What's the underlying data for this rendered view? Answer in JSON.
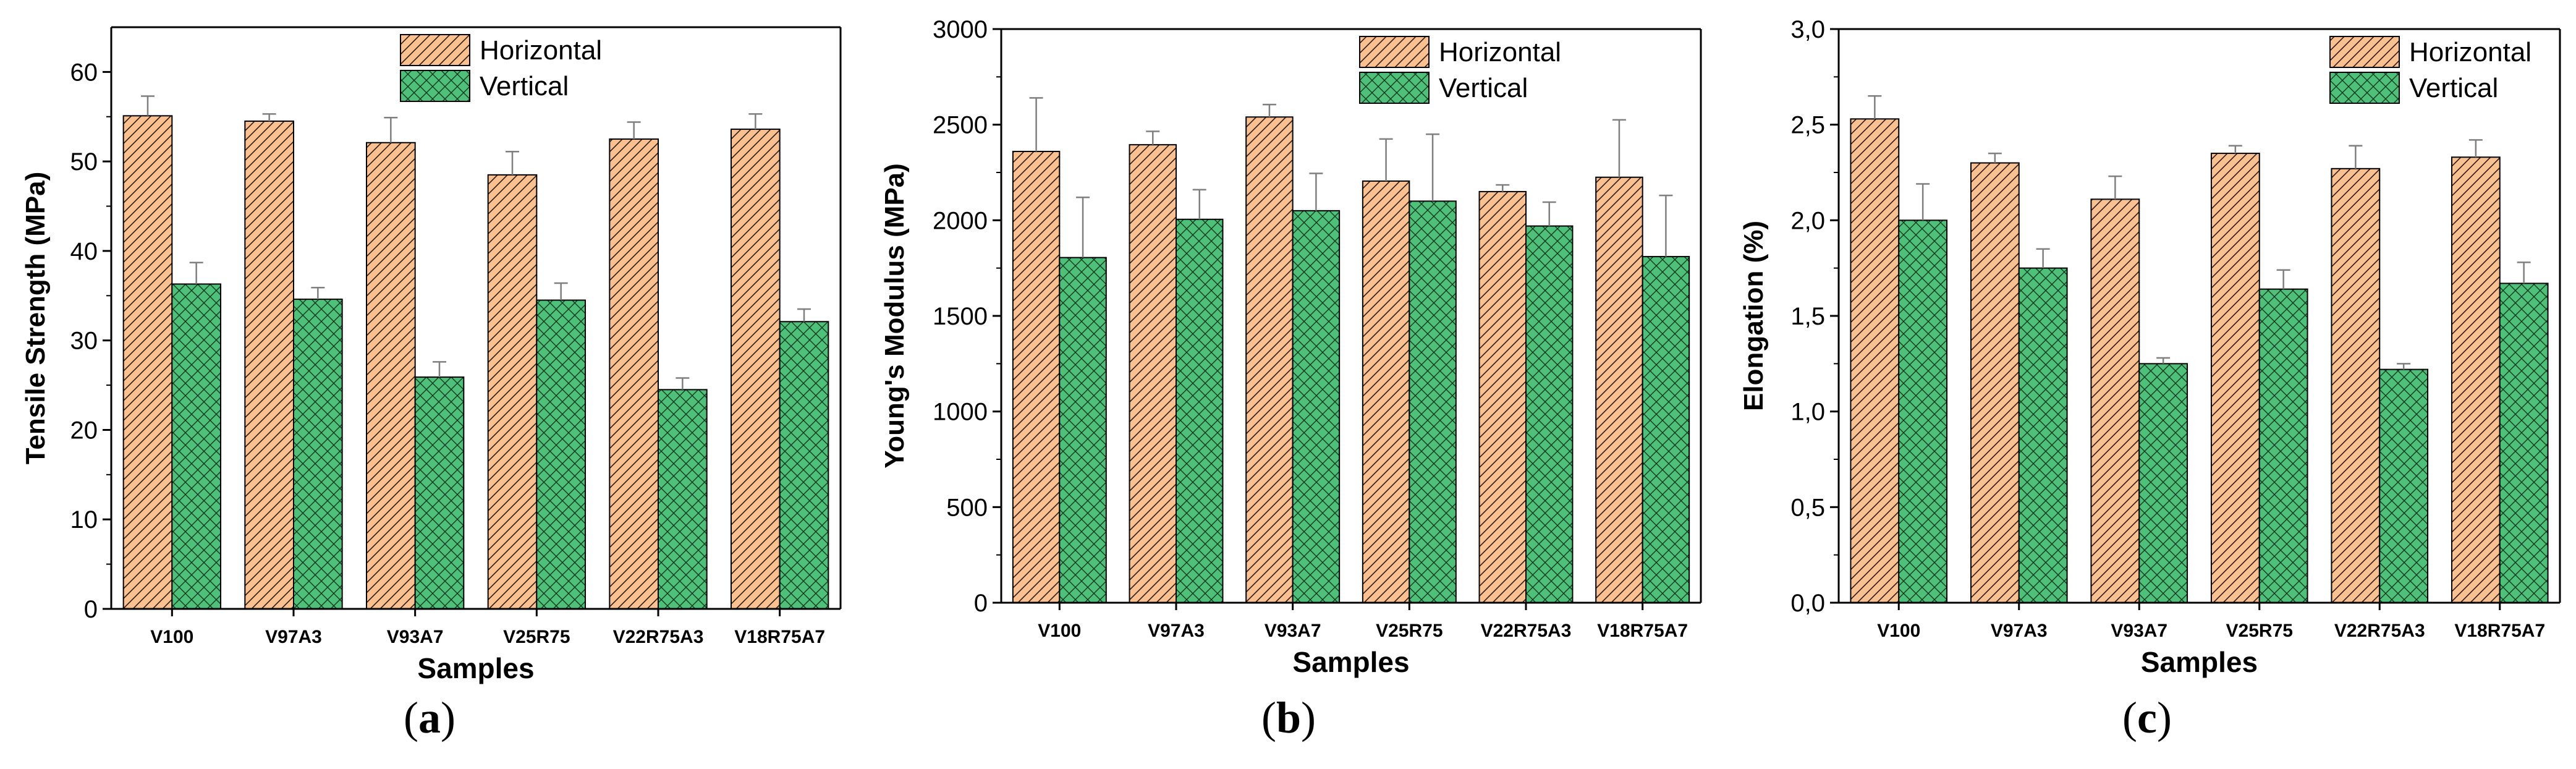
{
  "colors": {
    "horizontal_fill": "#FAC090",
    "vertical_fill": "#4EC07A",
    "hatch_horizontal": "#2a1a0a",
    "hatch_vertical": "#0f3a1f",
    "axis": "#000000",
    "error_bar": "#7f7f7f"
  },
  "chart_data": [
    {
      "panel": "a",
      "caption": "a",
      "type": "bar",
      "xlabel": "Samples",
      "ylabel": "Tensile Strength (MPa)",
      "ylim": [
        0,
        65
      ],
      "yticks": [
        "0",
        "10",
        "20",
        "30",
        "40",
        "50",
        "60"
      ],
      "categories": [
        "V100",
        "V97A3",
        "V93A7",
        "V25R75",
        "V22R75A3",
        "V18R75A7"
      ],
      "legend_position": "top-right",
      "series": [
        {
          "name": "Horizontal",
          "values": [
            55.1,
            54.5,
            52.1,
            48.5,
            52.5,
            53.6
          ],
          "errors": [
            2.2,
            0.8,
            2.8,
            2.6,
            1.9,
            1.7
          ]
        },
        {
          "name": "Vertical",
          "values": [
            36.3,
            34.6,
            25.9,
            34.5,
            24.5,
            32.1
          ],
          "errors": [
            2.4,
            1.3,
            1.7,
            1.9,
            1.3,
            1.4
          ]
        }
      ]
    },
    {
      "panel": "b",
      "caption": "b",
      "type": "bar",
      "xlabel": "Samples",
      "ylabel": "Young's Modulus (MPa)",
      "ylim": [
        0,
        3000
      ],
      "yticks": [
        "0",
        "500",
        "1000",
        "1500",
        "2000",
        "2500",
        "3000"
      ],
      "categories": [
        "V100",
        "V97A3",
        "V93A7",
        "V25R75",
        "V22R75A3",
        "V18R75A7"
      ],
      "legend_position": "top-right",
      "series": [
        {
          "name": "Horizontal",
          "values": [
            2360,
            2395,
            2540,
            2205,
            2150,
            2225
          ],
          "errors": [
            280,
            70,
            65,
            220,
            35,
            300
          ]
        },
        {
          "name": "Vertical",
          "values": [
            1805,
            2005,
            2050,
            2100,
            1970,
            1810
          ],
          "errors": [
            315,
            155,
            195,
            350,
            125,
            320
          ]
        }
      ]
    },
    {
      "panel": "c",
      "caption": "c",
      "type": "bar",
      "xlabel": "Samples",
      "ylabel": "Elongation (%)",
      "ylim": [
        0,
        3.0
      ],
      "yticks": [
        "0,0",
        "0,5",
        "1,0",
        "1,5",
        "2,0",
        "2,5",
        "3,0"
      ],
      "categories": [
        "V100",
        "V97A3",
        "V93A7",
        "V25R75",
        "V22R75A3",
        "V18R75A7"
      ],
      "legend_position": "top-right",
      "series": [
        {
          "name": "Horizontal",
          "values": [
            2.53,
            2.3,
            2.11,
            2.35,
            2.27,
            2.33
          ],
          "errors": [
            0.12,
            0.05,
            0.12,
            0.04,
            0.12,
            0.09
          ]
        },
        {
          "name": "Vertical",
          "values": [
            2.0,
            1.75,
            1.25,
            1.64,
            1.22,
            1.67
          ],
          "errors": [
            0.19,
            0.1,
            0.03,
            0.1,
            0.03,
            0.11
          ]
        }
      ]
    }
  ]
}
